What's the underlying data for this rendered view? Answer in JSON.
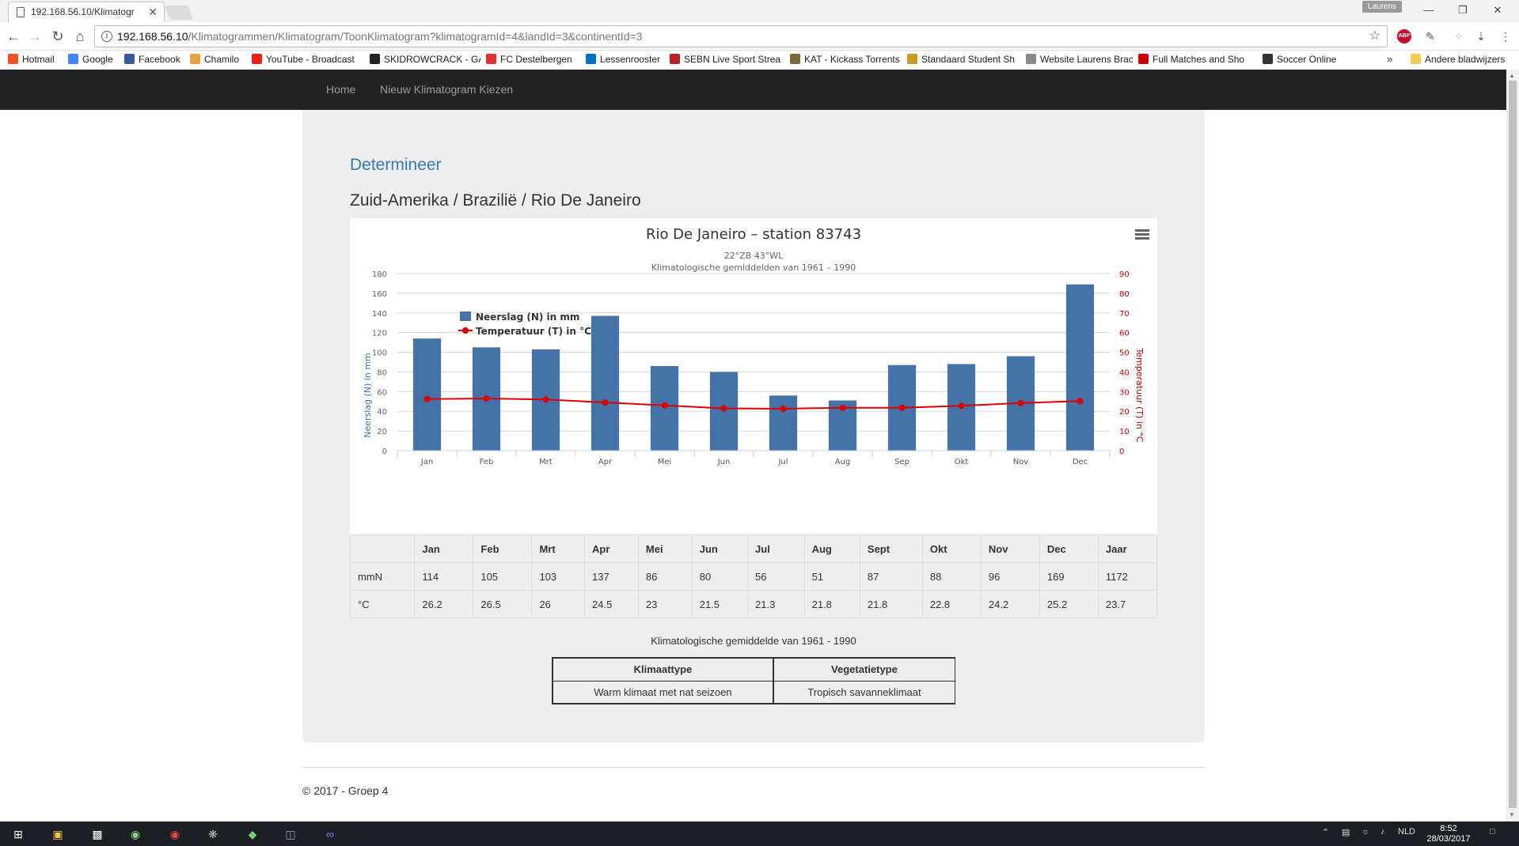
{
  "browser": {
    "tab_title": "192.168.56.10/Klimatogr",
    "tab_close": "✕",
    "profile": "Laurens",
    "url_host": "192.168.56.10",
    "url_path": "/Klimatogrammen/Klimatogram/ToonKlimatogram?klimatogramId=4&landId=3&continentId=3",
    "bookmarks": [
      {
        "label": "Hotmail",
        "color": "#f25022"
      },
      {
        "label": "Google",
        "color": "#4285f4"
      },
      {
        "label": "Facebook",
        "color": "#3b5998"
      },
      {
        "label": "Chamilo",
        "color": "#e8a33d"
      },
      {
        "label": "YouTube - Broadcast",
        "color": "#e62117"
      },
      {
        "label": "SKIDROWCRACK - GA",
        "color": "#222222"
      },
      {
        "label": "FC Destelbergen",
        "color": "#d33"
      },
      {
        "label": "Lessenrooster",
        "color": "#0072c6"
      },
      {
        "label": "SEBN Live Sport Strea",
        "color": "#b22"
      },
      {
        "label": "KAT - Kickass Torrents",
        "color": "#7a6a3a"
      },
      {
        "label": "Standaard Student Sh",
        "color": "#c79a2a"
      },
      {
        "label": "Website Laurens Brac",
        "color": "#888888"
      },
      {
        "label": "Full Matches and Sho",
        "color": "#c00"
      },
      {
        "label": "Soccer Online",
        "color": "#333333"
      }
    ],
    "bookmarks_more": "»",
    "bookmarks_folder": "Andere bladwijzers"
  },
  "nav": {
    "home": "Home",
    "new": "Nieuw Klimatogram Kiezen"
  },
  "page": {
    "determineer": "Determineer",
    "location": "Zuid-Amerika / Brazilië / Rio De Janeiro",
    "caption": "Klimatologische gemiddelde van 1961 - 1990",
    "footer": "© 2017 - Groep 4"
  },
  "chart_data": {
    "type": "bar",
    "title": "Rio De Janeiro – station 83743",
    "subtitle1": "22°ZB 43°WL",
    "subtitle2": "Klimatologische gemiddelden van 1961 – 1990",
    "categories": [
      "Jan",
      "Feb",
      "Mrt",
      "Apr",
      "Mei",
      "Jun",
      "Jul",
      "Aug",
      "Sep",
      "Okt",
      "Nov",
      "Dec"
    ],
    "ylabel_left": "Neerslag (N) in mm",
    "ylabel_right": "Temperatuur (T) in °C",
    "ylim_left": [
      0,
      180
    ],
    "ylim_right": [
      0,
      90
    ],
    "yticks_left": [
      "0",
      "20",
      "40",
      "60",
      "80",
      "100",
      "120",
      "140",
      "160",
      "180"
    ],
    "yticks_right": [
      "0",
      "10",
      "20",
      "30",
      "40",
      "50",
      "60",
      "70",
      "80",
      "90"
    ],
    "legend_placement": "top-left",
    "grid": true,
    "series": [
      {
        "name": "Neerslag (N) in mm",
        "kind": "bar",
        "color": "#4572a7",
        "values": [
          114,
          105,
          103,
          137,
          86,
          80,
          56,
          51,
          87,
          88,
          96,
          169
        ]
      },
      {
        "name": "Temperatuur (T) in °C",
        "kind": "line",
        "color": "#dd0000",
        "values": [
          26.2,
          26.5,
          26,
          24.5,
          23,
          21.5,
          21.3,
          21.8,
          21.8,
          22.8,
          24.2,
          25.2
        ]
      }
    ]
  },
  "table": {
    "headers": [
      "",
      "Jan",
      "Feb",
      "Mrt",
      "Apr",
      "Mei",
      "Jun",
      "Jul",
      "Aug",
      "Sept",
      "Okt",
      "Nov",
      "Dec",
      "Jaar"
    ],
    "rows": [
      [
        "mmN",
        "114",
        "105",
        "103",
        "137",
        "86",
        "80",
        "56",
        "51",
        "87",
        "88",
        "96",
        "169",
        "1172"
      ],
      [
        "°C",
        "26.2",
        "26.5",
        "26",
        "24.5",
        "23",
        "21.5",
        "21.3",
        "21.8",
        "21.8",
        "22.8",
        "24.2",
        "25.2",
        "23.7"
      ]
    ]
  },
  "determination": {
    "headers": [
      "Klimaattype",
      "Vegetatietype"
    ],
    "values": [
      "Warm klimaat met nat seizoen",
      "Tropisch savanneklimaat"
    ]
  },
  "taskbar": {
    "language": "NLD",
    "time": "8:52",
    "date": "28/03/2017"
  }
}
